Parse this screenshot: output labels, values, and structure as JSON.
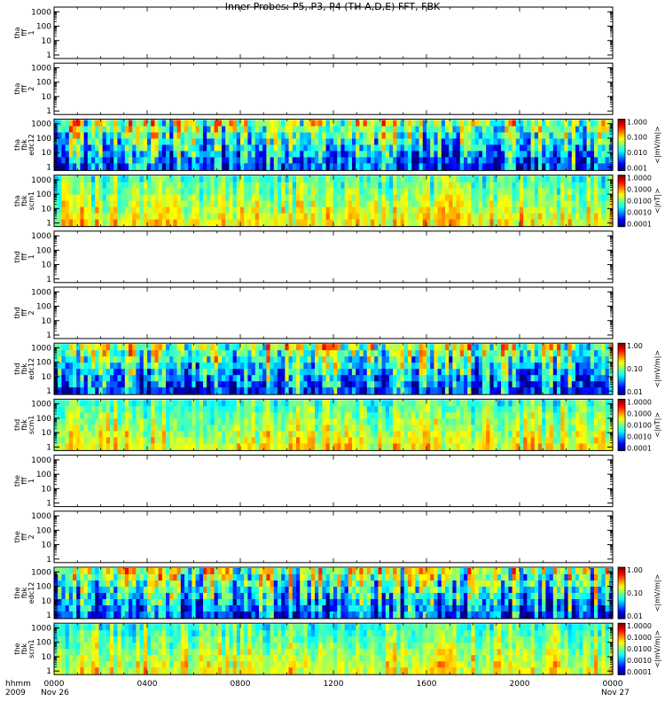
{
  "title": "Inner Probes: P5, P3, P4 (TH-A,D,E) FFT, FBK",
  "chart_data": {
    "type": "heatmap",
    "x_ticks": [
      "0000",
      "0400",
      "0800",
      "1200",
      "1600",
      "2000",
      "0000"
    ],
    "x_prefix": [
      "hhmm",
      "2009"
    ],
    "x_date_start": "Nov 26",
    "x_date_end": "Nov 27",
    "y_ticks": [
      "1",
      "10",
      "100",
      "1000"
    ],
    "panels": [
      {
        "label": [
          "tha",
          "fff",
          "1"
        ],
        "kind": "empty"
      },
      {
        "label": [
          "tha",
          "fff",
          "2"
        ],
        "kind": "empty"
      },
      {
        "label": [
          "tha",
          "fbk",
          "edc12"
        ],
        "kind": "heat",
        "seed": 11,
        "colorbar": {
          "ticks": [
            "1.000",
            "0.100",
            "0.010",
            "0.001"
          ],
          "unit": "<|mV/m|>"
        }
      },
      {
        "label": [
          "tha",
          "fbk",
          "scm1"
        ],
        "kind": "heat",
        "seed": 23,
        "colorbar": {
          "ticks": [
            "1.0000",
            "0.1000",
            "0.0100",
            "0.0010",
            "0.0001"
          ],
          "unit": "<|nT|>"
        }
      },
      {
        "label": [
          "thd",
          "fff",
          "1"
        ],
        "kind": "empty"
      },
      {
        "label": [
          "thd",
          "fff",
          "2"
        ],
        "kind": "empty"
      },
      {
        "label": [
          "thd",
          "fbk",
          "edc12"
        ],
        "kind": "heat",
        "seed": 37,
        "colorbar": {
          "ticks": [
            "1.00",
            "0.10",
            "0.01"
          ],
          "unit": "<|mV/m|>"
        }
      },
      {
        "label": [
          "thd",
          "fbk",
          "scm1"
        ],
        "kind": "heat",
        "seed": 41,
        "colorbar": {
          "ticks": [
            "1.0000",
            "0.1000",
            "0.0100",
            "0.0010",
            "0.0001"
          ],
          "unit": "<|nT|>"
        }
      },
      {
        "label": [
          "the",
          "fff",
          "1"
        ],
        "kind": "empty"
      },
      {
        "label": [
          "the",
          "fff",
          "2"
        ],
        "kind": "empty"
      },
      {
        "label": [
          "the",
          "fbk",
          "edc12"
        ],
        "kind": "heat",
        "seed": 53,
        "colorbar": {
          "ticks": [
            "1.00",
            "0.10",
            "0.01"
          ],
          "unit": "<|mV/m|>"
        }
      },
      {
        "label": [
          "the",
          "fbk",
          "scm1"
        ],
        "kind": "heat",
        "seed": 67,
        "colorbar": {
          "ticks": [
            "1.0000",
            "0.1000",
            "0.0100",
            "0.0010",
            "0.0001"
          ],
          "unit": "<|mV/m|>"
        }
      }
    ]
  }
}
